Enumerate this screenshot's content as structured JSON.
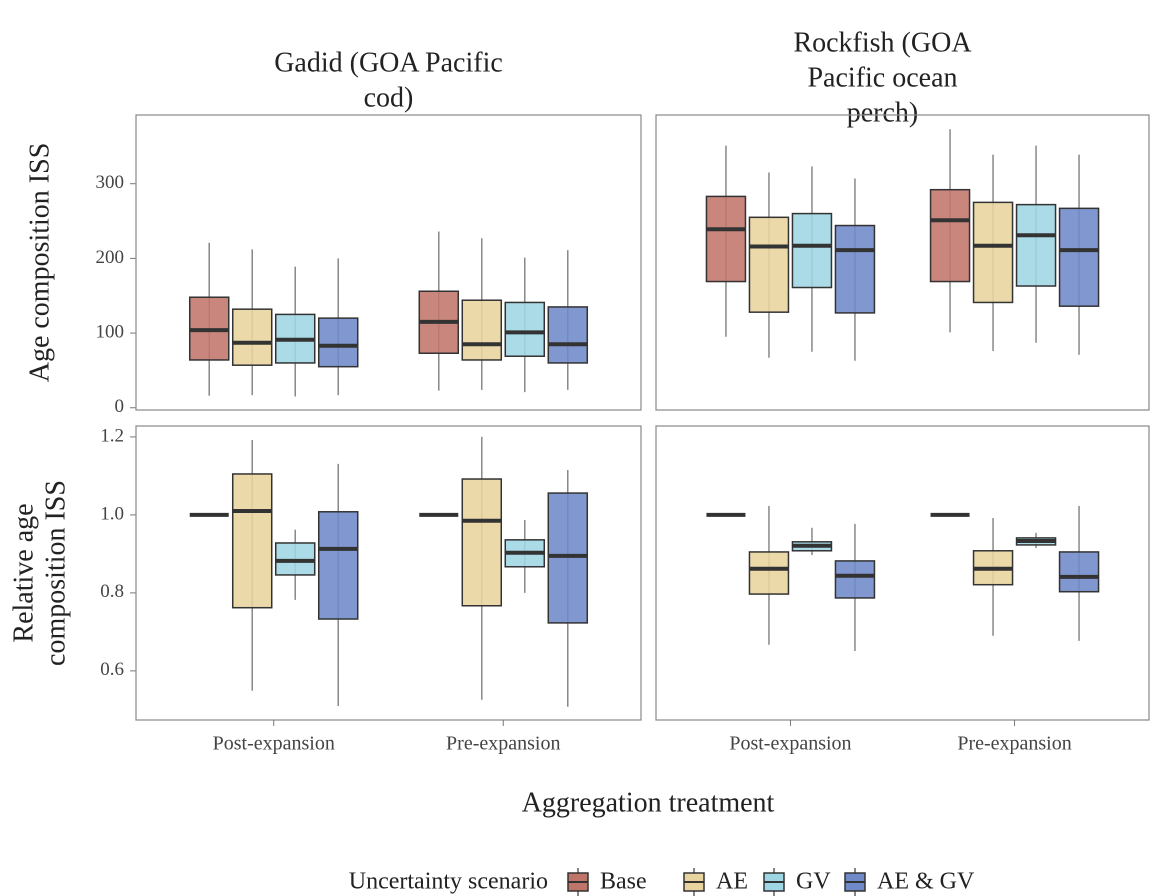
{
  "chart_data": {
    "type": "box",
    "xlabel": "Aggregation treatment",
    "legend_title": "Uncertainty scenario",
    "categories": [
      "Post-expansion",
      "Pre-expansion"
    ],
    "series": [
      {
        "name": "Base",
        "color": "#c0756b"
      },
      {
        "name": "AE",
        "color": "#e8d49e"
      },
      {
        "name": "GV",
        "color": "#9fd6e3"
      },
      {
        "name": "AE & GV",
        "color": "#7089c8"
      }
    ],
    "columns": [
      {
        "title": [
          "Gadid (GOA Pacific",
          "cod)"
        ]
      },
      {
        "title": [
          "Rockfish (GOA",
          "Pacific ocean",
          "perch)"
        ]
      }
    ],
    "rows": [
      {
        "ylabel": [
          "Age composition ISS"
        ],
        "ylim": [
          -3,
          392
        ],
        "yticks": [
          0,
          100,
          200,
          300
        ],
        "cells": [
          {
            "boxes": [
              [
                {
                  "low": 16,
                  "q1": 64,
                  "median": 104,
                  "q3": 148,
                  "high": 221
                },
                {
                  "low": 17,
                  "q1": 57,
                  "median": 87,
                  "q3": 132,
                  "high": 212
                },
                {
                  "low": 15,
                  "q1": 60,
                  "median": 91,
                  "q3": 125,
                  "high": 189
                },
                {
                  "low": 17,
                  "q1": 55,
                  "median": 83,
                  "q3": 120,
                  "high": 200
                }
              ],
              [
                {
                  "low": 23,
                  "q1": 73,
                  "median": 115,
                  "q3": 156,
                  "high": 236
                },
                {
                  "low": 24,
                  "q1": 64,
                  "median": 85,
                  "q3": 144,
                  "high": 227
                },
                {
                  "low": 21,
                  "q1": 69,
                  "median": 101,
                  "q3": 141,
                  "high": 201
                },
                {
                  "low": 24,
                  "q1": 60,
                  "median": 85,
                  "q3": 135,
                  "high": 211
                }
              ]
            ]
          },
          {
            "boxes": [
              [
                {
                  "low": 95,
                  "q1": 169,
                  "median": 239,
                  "q3": 283,
                  "high": 351
                },
                {
                  "low": 67,
                  "q1": 128,
                  "median": 216,
                  "q3": 255,
                  "high": 315
                },
                {
                  "low": 75,
                  "q1": 161,
                  "median": 217,
                  "q3": 260,
                  "high": 323
                },
                {
                  "low": 63,
                  "q1": 127,
                  "median": 211,
                  "q3": 244,
                  "high": 307
                }
              ],
              [
                {
                  "low": 101,
                  "q1": 169,
                  "median": 251,
                  "q3": 292,
                  "high": 373
                },
                {
                  "low": 76,
                  "q1": 141,
                  "median": 217,
                  "q3": 275,
                  "high": 339
                },
                {
                  "low": 87,
                  "q1": 163,
                  "median": 231,
                  "q3": 272,
                  "high": 351
                },
                {
                  "low": 71,
                  "q1": 136,
                  "median": 211,
                  "q3": 267,
                  "high": 339
                }
              ]
            ]
          }
        ]
      },
      {
        "ylabel": [
          "Relative age",
          "composition ISS"
        ],
        "ylim": [
          0.474,
          1.228
        ],
        "yticks": [
          0.6,
          0.8,
          {
            "value": 1,
            "label": "1.0"
          },
          1.2
        ],
        "cells": [
          {
            "boxes": [
              [
                {
                  "low": 1,
                  "q1": 1,
                  "median": 1,
                  "q3": 1,
                  "high": 1
                },
                {
                  "low": 0.549,
                  "q1": 0.762,
                  "median": 1.01,
                  "q3": 1.105,
                  "high": 1.192
                },
                {
                  "low": 0.782,
                  "q1": 0.846,
                  "median": 0.882,
                  "q3": 0.928,
                  "high": 0.962
                },
                {
                  "low": 0.51,
                  "q1": 0.733,
                  "median": 0.913,
                  "q3": 1.008,
                  "high": 1.131
                }
              ],
              [
                {
                  "low": 1,
                  "q1": 1,
                  "median": 1,
                  "q3": 1,
                  "high": 1
                },
                {
                  "low": 0.526,
                  "q1": 0.767,
                  "median": 0.985,
                  "q3": 1.092,
                  "high": 1.2
                },
                {
                  "low": 0.8,
                  "q1": 0.867,
                  "median": 0.903,
                  "q3": 0.936,
                  "high": 0.987
                },
                {
                  "low": 0.508,
                  "q1": 0.723,
                  "median": 0.895,
                  "q3": 1.056,
                  "high": 1.115
                }
              ]
            ]
          },
          {
            "boxes": [
              [
                {
                  "low": 1,
                  "q1": 1,
                  "median": 1,
                  "q3": 1,
                  "high": 1
                },
                {
                  "low": 0.667,
                  "q1": 0.797,
                  "median": 0.862,
                  "q3": 0.905,
                  "high": 1.023
                },
                {
                  "low": 0.897,
                  "q1": 0.908,
                  "median": 0.921,
                  "q3": 0.931,
                  "high": 0.967
                },
                {
                  "low": 0.651,
                  "q1": 0.787,
                  "median": 0.844,
                  "q3": 0.882,
                  "high": 0.977
                }
              ],
              [
                {
                  "low": 1,
                  "q1": 1,
                  "median": 1,
                  "q3": 1,
                  "high": 1
                },
                {
                  "low": 0.69,
                  "q1": 0.821,
                  "median": 0.862,
                  "q3": 0.908,
                  "high": 0.992
                },
                {
                  "low": 0.915,
                  "q1": 0.923,
                  "median": 0.933,
                  "q3": 0.941,
                  "high": 0.954
                },
                {
                  "low": 0.677,
                  "q1": 0.803,
                  "median": 0.841,
                  "q3": 0.905,
                  "high": 1.023
                }
              ]
            ]
          }
        ]
      }
    ]
  }
}
